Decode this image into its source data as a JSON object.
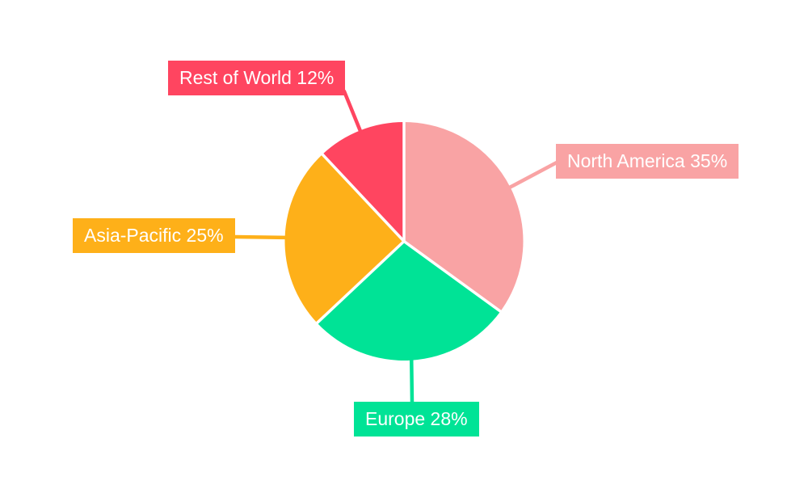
{
  "chart_data": {
    "type": "pie",
    "slices": [
      {
        "label": "North America",
        "value": 35,
        "unit": "%",
        "display": "North America 35%",
        "color": "#F9A3A4"
      },
      {
        "label": "Europe",
        "value": 28,
        "unit": "%",
        "display": "Europe 28%",
        "color": "#00E396"
      },
      {
        "label": "Asia-Pacific",
        "value": 25,
        "unit": "%",
        "display": "Asia-Pacific 25%",
        "color": "#FEB019"
      },
      {
        "label": "Rest of World",
        "value": 12,
        "unit": "%",
        "display": "Rest of World 12%",
        "color": "#FF4560"
      }
    ],
    "total": 100,
    "start_angle_deg": 0,
    "direction": "clockwise",
    "background": "#FFFFFF",
    "label_style": {
      "shape": "callout-box",
      "text_color": "#FFFFFF",
      "leader_lines": true
    },
    "separator_color": "#FFFFFF"
  }
}
